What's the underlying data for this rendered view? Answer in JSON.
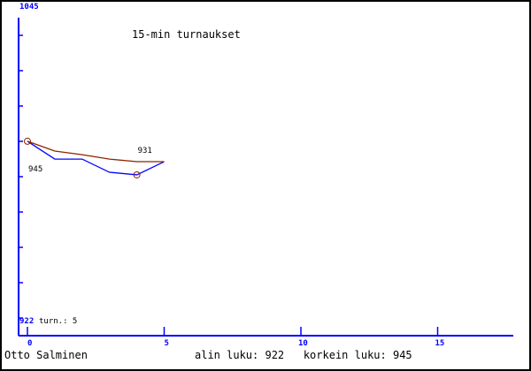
{
  "chart_data": {
    "type": "line",
    "title": "15-min turnaukset",
    "xlabel": "",
    "ylabel": "",
    "x": [
      0,
      1,
      2,
      3,
      4,
      5
    ],
    "xticks": [
      "0",
      "5",
      "10",
      "15"
    ],
    "xlim": [
      0,
      17.8
    ],
    "ylim": [
      922,
      1045
    ],
    "ytick_top": "1045",
    "ytick_bottom": "922",
    "series": [
      {
        "name": "blue",
        "color": "#0000ff",
        "values": [
          997.2,
          990.3,
          990.3,
          985.2,
          984.2,
          989.3
        ]
      },
      {
        "name": "brown",
        "color": "#8b2500",
        "values": [
          997.2,
          993.4,
          992.0,
          990.3,
          989.3,
          989.3
        ]
      }
    ],
    "markers": [
      {
        "x": 0,
        "y": 997.2
      },
      {
        "x": 4,
        "y": 984.2
      }
    ],
    "annotations": [
      {
        "text": "945",
        "x": 0,
        "y": 986
      },
      {
        "text": "931",
        "x": 4,
        "y": 993
      }
    ],
    "turn_label": "turn.: 5"
  },
  "footer": {
    "player": "Otto Salminen",
    "stats": "alin luku: 922   korkein luku: 945"
  }
}
